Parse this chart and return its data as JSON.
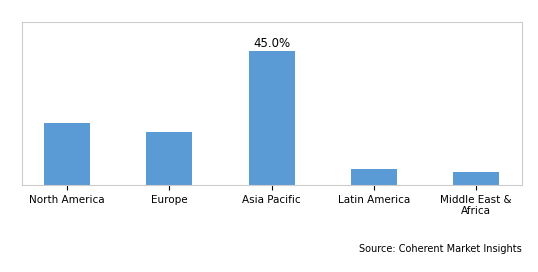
{
  "categories": [
    "North America",
    "Europe",
    "Asia Pacific",
    "Latin America",
    "Middle East &\nAfrica"
  ],
  "values": [
    21.0,
    18.0,
    45.0,
    5.5,
    4.5
  ],
  "bar_color": "#5B9BD5",
  "annotate_index": 2,
  "annotate_label": "45.0%",
  "source_text": "Source: Coherent Market Insights",
  "ylim": [
    0,
    55
  ],
  "bar_width": 0.45,
  "annotation_fontsize": 8.5,
  "tick_fontsize": 7.5,
  "source_fontsize": 7,
  "background_color": "#ffffff"
}
